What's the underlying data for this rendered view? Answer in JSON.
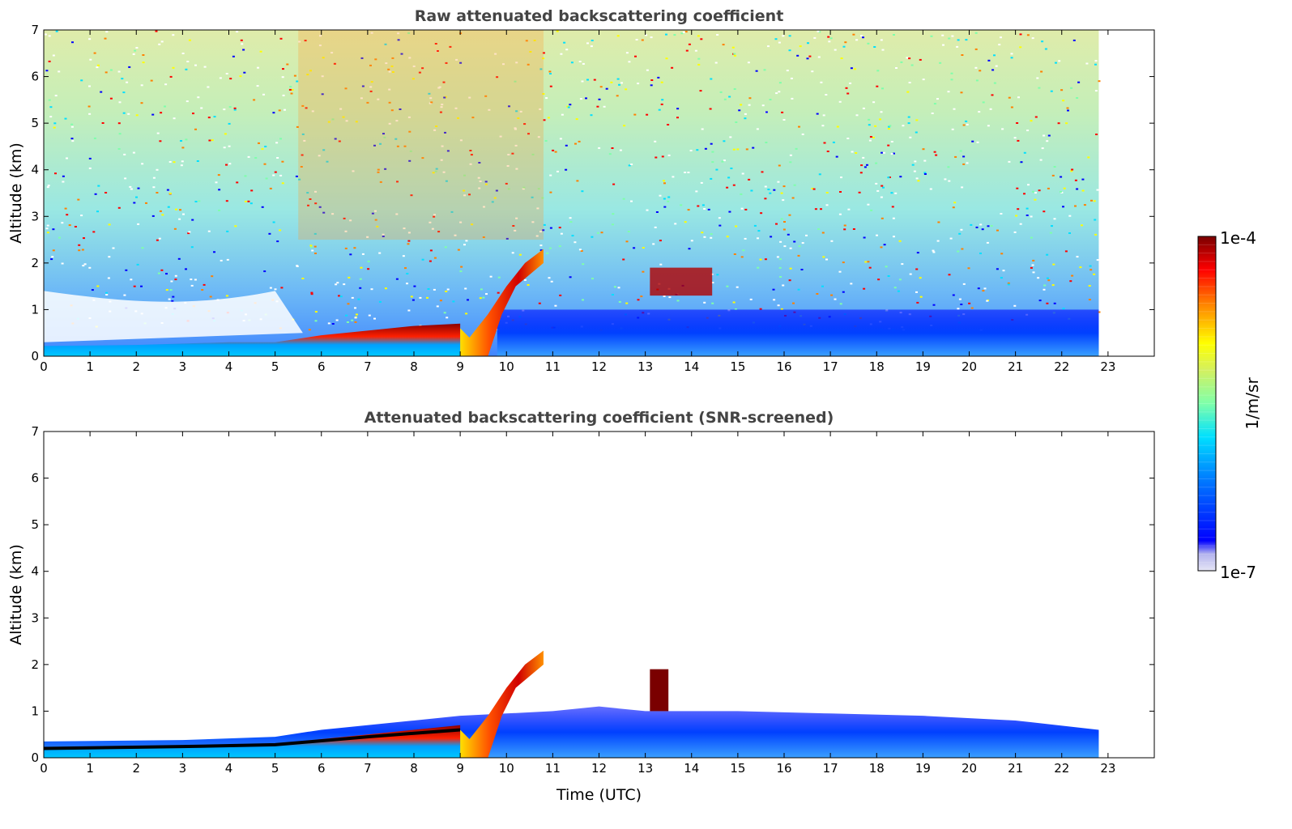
{
  "colors": {
    "colormap": [
      "#e6e6f5",
      "#b4b4ee",
      "#0000ff",
      "#0080ff",
      "#00e0ff",
      "#7fffaa",
      "#d4f060",
      "#ffff00",
      "#ff8000",
      "#ff0000",
      "#7a0000"
    ],
    "axes": "#000000",
    "title": "#444444",
    "background": "#ffffff"
  },
  "chart_data": [
    {
      "type": "heatmap",
      "title": "Raw attenuated backscattering coefficient",
      "xlabel": "",
      "ylabel": "Altitude (km)",
      "xlim": [
        0,
        24
      ],
      "ylim": [
        0,
        7
      ],
      "xticks": [
        "0",
        "1",
        "2",
        "3",
        "4",
        "5",
        "6",
        "7",
        "8",
        "9",
        "10",
        "11",
        "12",
        "13",
        "14",
        "15",
        "16",
        "17",
        "18",
        "19",
        "20",
        "21",
        "22",
        "23"
      ],
      "yticks": [
        "0",
        "1",
        "2",
        "3",
        "4",
        "5",
        "6",
        "7"
      ],
      "data_end_time": 22.8,
      "features": {
        "boundary_layer_height": [
          [
            0,
            0.22
          ],
          [
            2,
            0.24
          ],
          [
            4,
            0.3
          ],
          [
            5,
            0.3
          ],
          [
            6,
            0.45
          ],
          [
            7,
            0.55
          ],
          [
            8,
            0.65
          ],
          [
            9,
            0.7
          ]
        ],
        "rising_aerosol_layer": [
          [
            9.2,
            0.4
          ],
          [
            9.6,
            0.9
          ],
          [
            10,
            1.5
          ],
          [
            10.4,
            2.0
          ],
          [
            10.8,
            2.3
          ]
        ],
        "high_noise_window": [
          5.5,
          10.8
        ],
        "plume_event": [
          13.1,
          1.6
        ]
      }
    },
    {
      "type": "heatmap",
      "title": "Attenuated backscattering coefficient (SNR-screened)",
      "xlabel": "Time (UTC)",
      "ylabel": "Altitude (km)",
      "xlim": [
        0,
        24
      ],
      "ylim": [
        0,
        7
      ],
      "xticks": [
        "0",
        "1",
        "2",
        "3",
        "4",
        "5",
        "6",
        "7",
        "8",
        "9",
        "10",
        "11",
        "12",
        "13",
        "14",
        "15",
        "16",
        "17",
        "18",
        "19",
        "20",
        "21",
        "22",
        "23"
      ],
      "yticks": [
        "0",
        "1",
        "2",
        "3",
        "4",
        "5",
        "6",
        "7"
      ],
      "data_end_time": 22.8,
      "features": {
        "screened_layer_top": [
          [
            0,
            0.35
          ],
          [
            3,
            0.38
          ],
          [
            5,
            0.45
          ],
          [
            6,
            0.6
          ],
          [
            8,
            0.8
          ],
          [
            9,
            0.9
          ],
          [
            10,
            0.95
          ],
          [
            11,
            1.0
          ],
          [
            12,
            1.1
          ],
          [
            13,
            1.0
          ],
          [
            15,
            1.0
          ],
          [
            17,
            0.95
          ],
          [
            19,
            0.9
          ],
          [
            21,
            0.8
          ],
          [
            22.8,
            0.6
          ]
        ]
      }
    }
  ],
  "colorbar": {
    "label": "1/m/sr",
    "max_label": "1e-4",
    "min_label": "1e-7"
  }
}
